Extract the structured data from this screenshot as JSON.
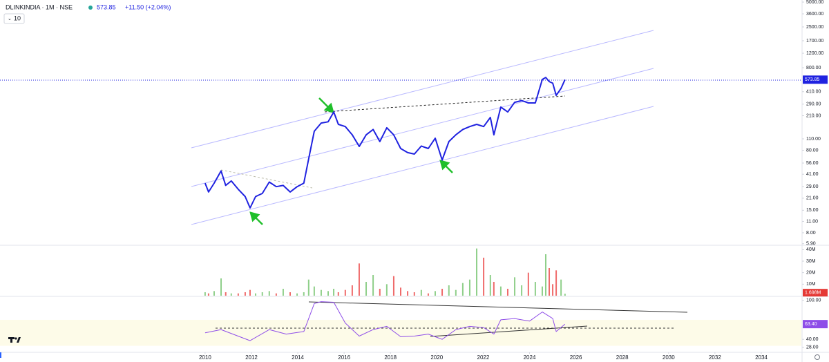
{
  "chart_data": [
    {
      "type": "line",
      "title": "DLINKINDIA · 1M · NSE",
      "last_price": 573.85,
      "change": "+11.50 (+2.04%)",
      "interval": "10",
      "log_scale": true,
      "grid": false,
      "color": "#1f22e0",
      "xlim": [
        2001.15,
        2035.73
      ],
      "xticks": [
        2010,
        2012,
        2014,
        2016,
        2018,
        2020,
        2022,
        2024,
        2026,
        2028,
        2030,
        2032,
        2034
      ],
      "ylim": [
        5.65,
        5300
      ],
      "yticks": [
        {
          "value": 5000,
          "label": "5000.00"
        },
        {
          "value": 3600,
          "label": "3600.00"
        },
        {
          "value": 2500,
          "label": "2500.00"
        },
        {
          "value": 1700,
          "label": "1700.00"
        },
        {
          "value": 1200,
          "label": "1200.00"
        },
        {
          "value": 800,
          "label": "800.00"
        },
        {
          "value": 410,
          "label": "410.00"
        },
        {
          "value": 290,
          "label": "290.00"
        },
        {
          "value": 210,
          "label": "210.00"
        },
        {
          "value": 110,
          "label": "110.00"
        },
        {
          "value": 80,
          "label": "80.00"
        },
        {
          "value": 56,
          "label": "56.00"
        },
        {
          "value": 41,
          "label": "41.00"
        },
        {
          "value": 29,
          "label": "29.00"
        },
        {
          "value": 21,
          "label": "21.00"
        },
        {
          "value": 15,
          "label": "15.00"
        },
        {
          "value": 11,
          "label": "11.00"
        },
        {
          "value": 8,
          "label": "8.00"
        },
        {
          "value": 5.9,
          "label": "5.90"
        }
      ],
      "x": [
        2010.0,
        2010.15,
        2010.39,
        2010.69,
        2010.89,
        2011.13,
        2011.43,
        2011.73,
        2011.94,
        2012.18,
        2012.47,
        2012.77,
        2013.07,
        2013.37,
        2013.67,
        2013.97,
        2014.26,
        2014.47,
        2014.71,
        2015.01,
        2015.31,
        2015.55,
        2015.75,
        2016.05,
        2016.35,
        2016.65,
        2016.95,
        2017.25,
        2017.54,
        2017.84,
        2018.14,
        2018.44,
        2018.74,
        2019.03,
        2019.33,
        2019.63,
        2019.93,
        2020.23,
        2020.52,
        2020.82,
        2021.12,
        2021.42,
        2021.72,
        2022.02,
        2022.31,
        2022.46,
        2022.76,
        2023.06,
        2023.36,
        2023.66,
        2023.95,
        2024.25,
        2024.55,
        2024.7,
        2024.85,
        2025.0,
        2025.15,
        2025.36,
        2025.53
      ],
      "values": [
        32,
        25,
        32,
        45,
        30,
        34,
        27,
        22,
        16,
        22,
        24,
        33,
        29,
        30,
        25,
        29,
        32,
        63,
        136,
        171,
        177,
        233,
        165,
        155,
        123,
        89,
        123,
        143,
        102,
        150,
        123,
        84,
        75,
        72,
        90,
        84,
        112,
        61,
        102,
        123,
        143,
        155,
        165,
        155,
        200,
        123,
        267,
        233,
        305,
        320,
        300,
        300,
        577,
        611,
        544,
        520,
        370,
        449,
        573.85
      ]
    },
    {
      "type": "bar",
      "up_color": "#8fcf8a",
      "down_color": "#ef6b6b",
      "last_label": "1.698M",
      "ylim": [
        0,
        43.8
      ],
      "yticks": [
        {
          "value": 40,
          "label": "40M"
        },
        {
          "value": 30,
          "label": "30M"
        },
        {
          "value": 20,
          "label": "20M"
        },
        {
          "value": 10,
          "label": "10M"
        }
      ],
      "x": [
        2010.0,
        2010.15,
        2010.39,
        2010.69,
        2010.89,
        2011.13,
        2011.43,
        2011.73,
        2011.94,
        2012.18,
        2012.47,
        2012.77,
        2013.07,
        2013.37,
        2013.67,
        2013.97,
        2014.26,
        2014.47,
        2014.71,
        2015.01,
        2015.31,
        2015.55,
        2015.75,
        2016.05,
        2016.35,
        2016.65,
        2016.95,
        2017.25,
        2017.54,
        2017.84,
        2018.14,
        2018.44,
        2018.74,
        2019.03,
        2019.33,
        2019.63,
        2019.93,
        2020.23,
        2020.52,
        2020.82,
        2021.12,
        2021.42,
        2021.72,
        2022.02,
        2022.31,
        2022.46,
        2022.76,
        2023.06,
        2023.36,
        2023.66,
        2023.95,
        2024.25,
        2024.55,
        2024.7,
        2024.85,
        2025.0,
        2025.15,
        2025.36,
        2025.53
      ],
      "values": [
        3,
        2,
        4,
        15,
        3,
        2,
        2,
        3,
        5,
        2,
        3,
        4,
        2,
        6,
        3,
        2,
        3,
        14,
        8,
        5,
        4,
        6,
        3,
        5,
        9,
        28,
        12,
        18,
        6,
        10,
        17,
        7,
        4,
        3,
        5,
        2,
        4,
        6,
        9,
        5,
        11,
        14,
        41,
        33,
        18,
        12,
        8,
        6,
        16,
        9,
        20,
        12,
        8,
        36,
        24,
        10,
        22,
        14,
        1.698
      ]
    },
    {
      "type": "line",
      "color": "#8e4de8",
      "band": [
        30,
        70
      ],
      "band_color": "#fdfbe8",
      "last_label": "63.40",
      "ylim": [
        20,
        105
      ],
      "yticks": [
        {
          "value": 100,
          "label": "100.00"
        },
        {
          "value": 40,
          "label": "40.00"
        },
        {
          "value": 28,
          "label": "28.00"
        }
      ],
      "x": [
        2010.0,
        2010.69,
        2011.94,
        2012.77,
        2013.5,
        2014.26,
        2014.71,
        2015.01,
        2015.55,
        2016.05,
        2016.65,
        2017.25,
        2017.84,
        2018.44,
        2019.03,
        2019.63,
        2020.23,
        2020.82,
        2021.42,
        2022.02,
        2022.46,
        2022.76,
        2023.36,
        2024.0,
        2024.55,
        2025.0,
        2025.15,
        2025.53
      ],
      "values": [
        50,
        55,
        38,
        55,
        48,
        52,
        95,
        98,
        97,
        65,
        45,
        55,
        60,
        44,
        45,
        48,
        40,
        55,
        60,
        58,
        48,
        70,
        72,
        68,
        82,
        72,
        52,
        63.4
      ]
    }
  ]
}
